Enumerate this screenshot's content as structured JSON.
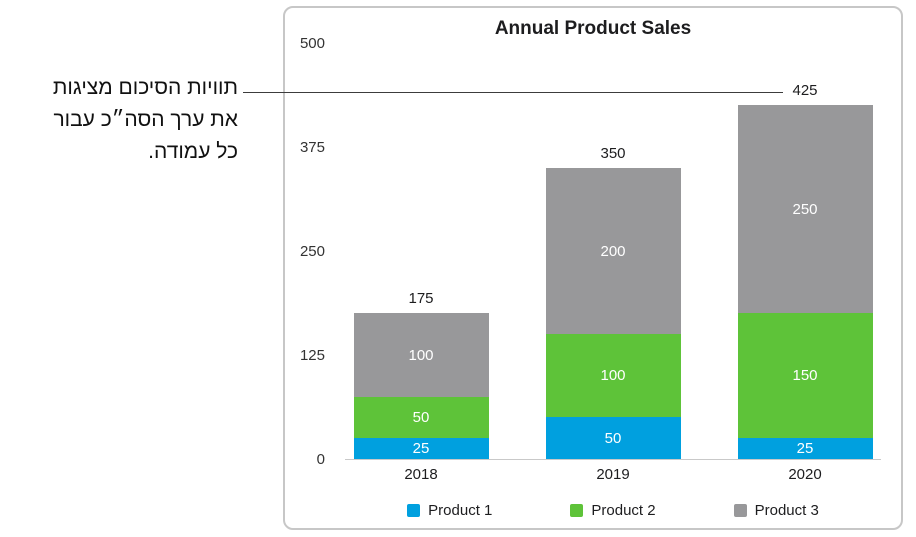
{
  "annotation": {
    "lines": [
      "תוויות הסיכום מציגות",
      "את ערך הסה״כ עבור",
      "כל עמודה."
    ]
  },
  "chart_data": {
    "type": "bar",
    "stacked": true,
    "title": "Annual Product Sales",
    "categories": [
      "2018",
      "2019",
      "2020"
    ],
    "series": [
      {
        "name": "Product 1",
        "color": "#00A0DF",
        "values": [
          25,
          50,
          25
        ]
      },
      {
        "name": "Product 2",
        "color": "#5EC339",
        "values": [
          50,
          100,
          150
        ]
      },
      {
        "name": "Product 3",
        "color": "#98989A",
        "values": [
          100,
          200,
          250
        ]
      }
    ],
    "totals": [
      175,
      350,
      425
    ],
    "y_ticks": [
      500,
      375,
      250,
      125,
      0
    ],
    "ylim": [
      0,
      500
    ],
    "grid": false,
    "legend_position": "bottom"
  }
}
